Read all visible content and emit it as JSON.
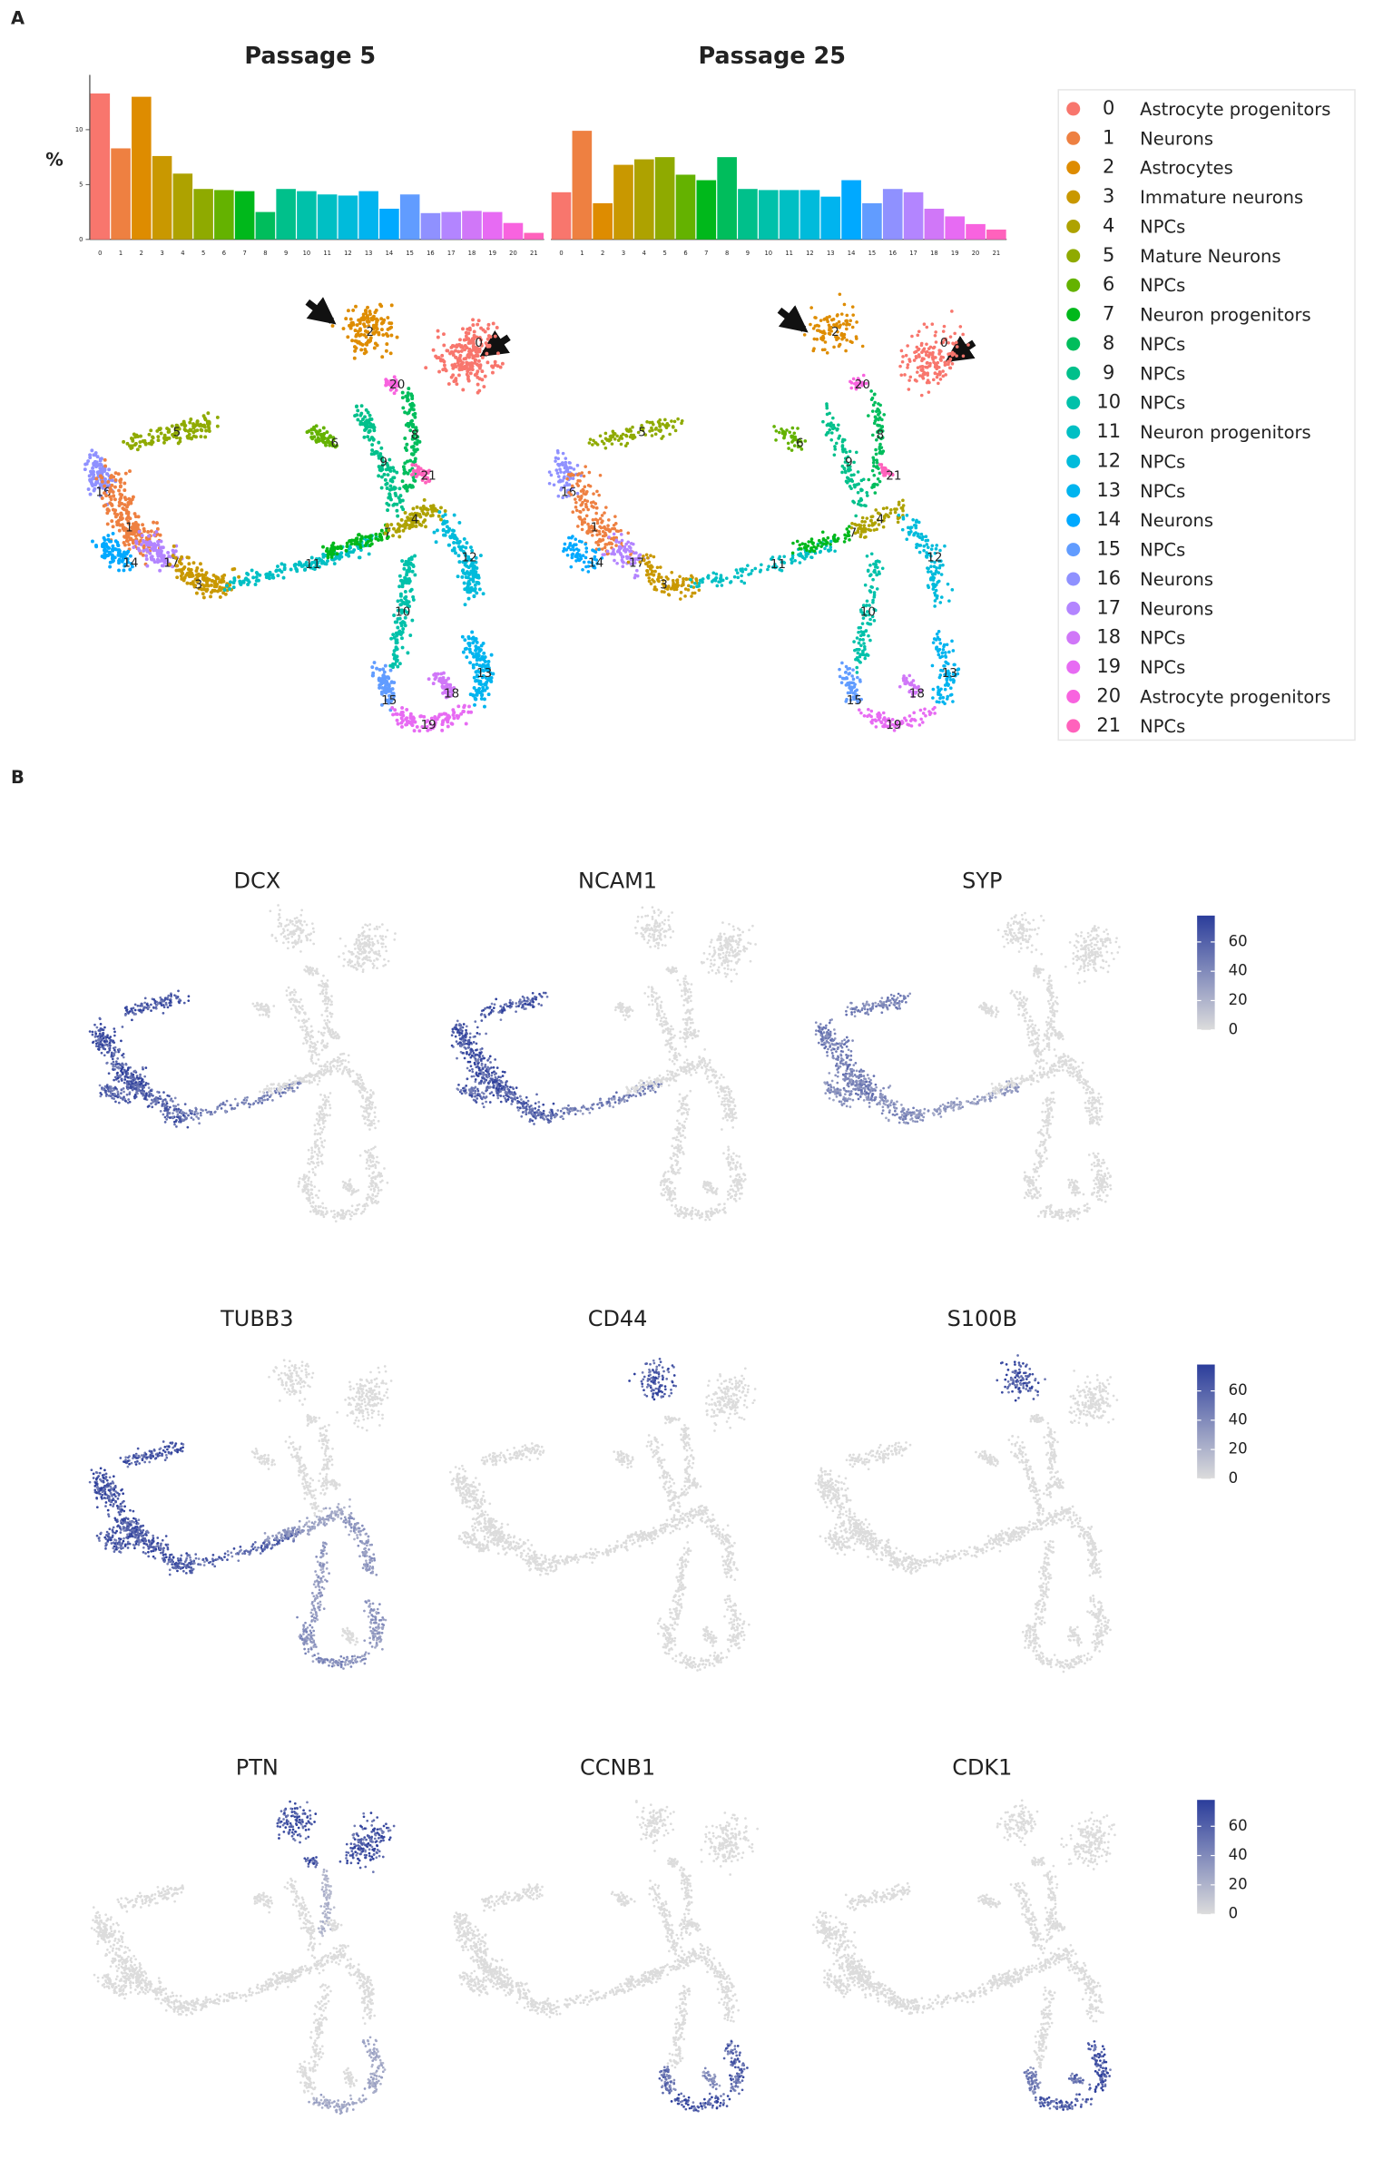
{
  "panel_labels": {
    "a": "A",
    "b": "B"
  },
  "chart_data": [
    {
      "type": "bar",
      "title": "Passage 5",
      "y_label": "%",
      "categories": [
        "0",
        "1",
        "2",
        "3",
        "4",
        "5",
        "6",
        "7",
        "8",
        "9",
        "10",
        "11",
        "12",
        "13",
        "14",
        "15",
        "16",
        "17",
        "18",
        "19",
        "20",
        "21"
      ],
      "values": [
        13.3,
        8.3,
        13.0,
        7.6,
        6.0,
        4.6,
        4.5,
        4.4,
        2.5,
        4.6,
        4.4,
        4.1,
        4.0,
        4.4,
        2.8,
        4.1,
        2.4,
        2.5,
        2.6,
        2.5,
        1.5,
        0.6
      ],
      "colors": [
        "#F8766D",
        "#EE8041",
        "#DE8C00",
        "#C99800",
        "#AEA200",
        "#8FAA00",
        "#64B200",
        "#00B81B",
        "#00BD5C",
        "#00C08B",
        "#00C1AA",
        "#00BFC4",
        "#00BBDB",
        "#00B4EF",
        "#00A9FF",
        "#619CFF",
        "#8F91FF",
        "#B385FF",
        "#D077F8",
        "#E76BF3",
        "#F863DF",
        "#FF62BC"
      ],
      "ylim": [
        0,
        15
      ],
      "yticks": [
        0,
        5,
        10
      ]
    },
    {
      "type": "bar",
      "title": "Passage 25",
      "categories": [
        "0",
        "1",
        "2",
        "3",
        "4",
        "5",
        "6",
        "7",
        "8",
        "9",
        "10",
        "11",
        "12",
        "13",
        "14",
        "15",
        "16",
        "17",
        "18",
        "19",
        "20",
        "21"
      ],
      "values": [
        4.3,
        9.9,
        3.3,
        6.8,
        7.3,
        7.5,
        5.9,
        5.4,
        7.5,
        4.6,
        4.5,
        4.5,
        4.5,
        3.9,
        5.4,
        3.3,
        4.6,
        4.3,
        2.8,
        2.1,
        1.4,
        0.9
      ],
      "colors": [
        "#F8766D",
        "#EE8041",
        "#DE8C00",
        "#C99800",
        "#AEA200",
        "#8FAA00",
        "#64B200",
        "#00B81B",
        "#00BD5C",
        "#00C08B",
        "#00C1AA",
        "#00BFC4",
        "#00BBDB",
        "#00B4EF",
        "#00A9FF",
        "#619CFF",
        "#8F91FF",
        "#B385FF",
        "#D077F8",
        "#E76BF3",
        "#F863DF",
        "#FF62BC"
      ],
      "ylim": [
        0,
        15
      ]
    }
  ],
  "legend": {
    "labels": [
      "Astrocyte progenitors",
      "Neurons",
      "Astrocytes",
      "Immature neurons",
      "NPCs",
      "Mature Neurons",
      "NPCs",
      "Neuron progenitors",
      "NPCs",
      "NPCs",
      "NPCs",
      "Neuron progenitors",
      "NPCs",
      "NPCs",
      "Neurons",
      "NPCs",
      "Neurons",
      "Neurons",
      "NPCs",
      "NPCs",
      "Astrocyte progenitors",
      "NPCs"
    ]
  },
  "feature_plots": {
    "genes": [
      "DCX",
      "NCAM1",
      "SYP",
      "TUBB3",
      "CD44",
      "S100B",
      "PTN",
      "CCNB1",
      "CDK1"
    ],
    "colorbar": {
      "lim": [
        0,
        78
      ],
      "ticks": [
        0,
        20,
        40,
        60
      ],
      "colors": [
        "#dcdcdc",
        "#2b3d9b"
      ]
    }
  }
}
